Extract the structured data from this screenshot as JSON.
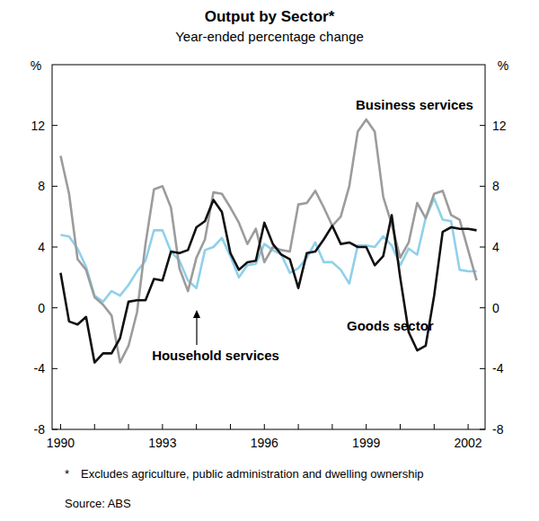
{
  "chart_data": {
    "type": "line",
    "title": "Output by Sector*",
    "subtitle": "Year-ended percentage change",
    "ylabel": "%",
    "categories": [
      "1990",
      null,
      null,
      null,
      null,
      null,
      null,
      null,
      null,
      null,
      null,
      null,
      "1993",
      null,
      null,
      null,
      null,
      null,
      null,
      null,
      null,
      null,
      null,
      null,
      "1996",
      null,
      null,
      null,
      null,
      null,
      null,
      null,
      null,
      null,
      null,
      null,
      "1999",
      null,
      null,
      null,
      null,
      null,
      null,
      null,
      null,
      null,
      null,
      null,
      "2002",
      null
    ],
    "series": [
      {
        "name": "Goods sector",
        "color": "#111111",
        "values": [
          2.3,
          -0.9,
          -1.1,
          -0.6,
          -3.6,
          -3.0,
          -3.0,
          -2.0,
          0.4,
          0.5,
          0.5,
          1.9,
          1.8,
          3.7,
          3.6,
          3.8,
          5.3,
          5.7,
          7.1,
          6.3,
          3.6,
          2.5,
          3.0,
          3.1,
          5.6,
          4.2,
          3.5,
          3.2,
          1.3,
          3.6,
          3.7,
          4.5,
          5.4,
          4.2,
          4.3,
          4.0,
          4.0,
          2.8,
          3.4,
          6.1,
          2.0,
          -1.6,
          -2.8,
          -2.5,
          0.8,
          5.0,
          5.3,
          5.2,
          5.2,
          5.1
        ]
      },
      {
        "name": "Business services",
        "color": "#9c9c9c",
        "values": [
          10.0,
          7.5,
          3.2,
          2.5,
          0.7,
          0.2,
          -0.5,
          -3.6,
          -2.5,
          -0.3,
          4.2,
          7.8,
          8.0,
          6.6,
          2.6,
          1.1,
          3.3,
          4.5,
          7.6,
          7.5,
          6.6,
          5.6,
          4.2,
          5.2,
          3.0,
          4.0,
          3.8,
          3.7,
          6.8,
          6.9,
          7.7,
          6.6,
          5.4,
          6.0,
          8.0,
          11.6,
          12.4,
          11.6,
          7.3,
          5.5,
          3.3,
          4.3,
          6.9,
          5.9,
          7.5,
          7.7,
          6.1,
          5.8,
          3.8,
          1.8
        ]
      },
      {
        "name": "Household services",
        "color": "#8fd0ea",
        "values": [
          4.8,
          4.7,
          3.9,
          2.7,
          0.8,
          0.4,
          1.1,
          0.8,
          1.5,
          2.4,
          3.1,
          5.1,
          5.1,
          3.7,
          3.1,
          1.8,
          1.3,
          3.8,
          4.0,
          4.6,
          3.4,
          2.0,
          2.8,
          2.9,
          4.2,
          3.8,
          3.5,
          2.3,
          2.6,
          3.3,
          4.3,
          3.0,
          3.0,
          2.5,
          1.6,
          4.1,
          4.1,
          4.0,
          4.7,
          4.1,
          2.8,
          3.9,
          3.5,
          5.9,
          7.2,
          5.8,
          5.7,
          2.5,
          2.4,
          2.4
        ]
      }
    ],
    "ylim": [
      -8,
      16
    ],
    "yticks": [
      -8,
      -4,
      0,
      4,
      8,
      12
    ],
    "grid": false,
    "footnote": {
      "marker": "*",
      "text": "Excludes agriculture, public administration and dwelling ownership"
    },
    "source": "Source: ABS"
  }
}
